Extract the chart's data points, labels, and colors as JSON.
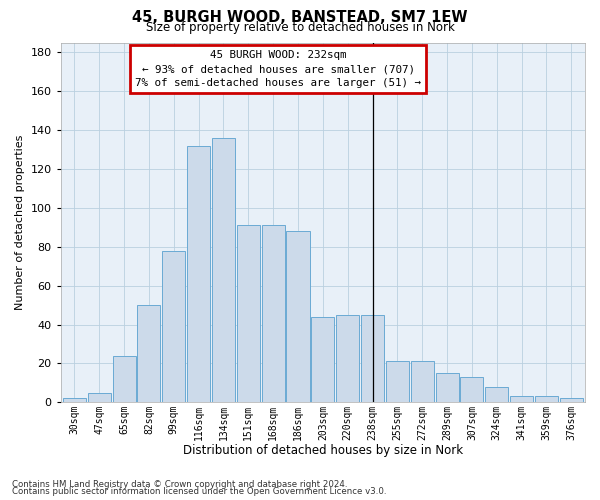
{
  "title1": "45, BURGH WOOD, BANSTEAD, SM7 1EW",
  "title2": "Size of property relative to detached houses in Nork",
  "xlabel": "Distribution of detached houses by size in Nork",
  "ylabel": "Number of detached properties",
  "bar_labels": [
    "30sqm",
    "47sqm",
    "65sqm",
    "82sqm",
    "99sqm",
    "116sqm",
    "134sqm",
    "151sqm",
    "168sqm",
    "186sqm",
    "203sqm",
    "220sqm",
    "238sqm",
    "255sqm",
    "272sqm",
    "289sqm",
    "307sqm",
    "324sqm",
    "341sqm",
    "359sqm",
    "376sqm"
  ],
  "bar_values": [
    2,
    5,
    24,
    50,
    78,
    132,
    136,
    91,
    91,
    88,
    44,
    45,
    45,
    21,
    21,
    15,
    13,
    8,
    3,
    3,
    2
  ],
  "bar_color": "#ccdaea",
  "bar_edge_color": "#6aaad4",
  "grid_color": "#bad0e0",
  "bg_color": "#e8f0f8",
  "vline_index": 12,
  "annotation_text": "45 BURGH WOOD: 232sqm\n← 93% of detached houses are smaller (707)\n7% of semi-detached houses are larger (51) →",
  "annotation_box_edgecolor": "#cc0000",
  "ylim": [
    0,
    185
  ],
  "yticks": [
    0,
    20,
    40,
    60,
    80,
    100,
    120,
    140,
    160,
    180
  ],
  "footnote1": "Contains HM Land Registry data © Crown copyright and database right 2024.",
  "footnote2": "Contains public sector information licensed under the Open Government Licence v3.0."
}
